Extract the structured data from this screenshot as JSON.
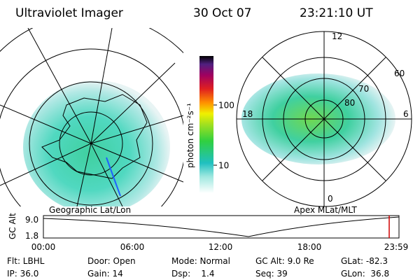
{
  "header": {
    "instrument": "Ultraviolet Imager",
    "date": "30 Oct 07",
    "time": "23:21:10 UT"
  },
  "left_map": {
    "label": "Geographic Lat/Lon"
  },
  "right_map": {
    "label": "Apex MLat/MLT",
    "mlt_labels": [
      "12",
      "6",
      "18",
      "0"
    ],
    "mlat_labels": [
      "60",
      "70",
      "80"
    ]
  },
  "colorbar": {
    "unit": "photon cm⁻²s⁻¹",
    "ticks": [
      "100",
      "10"
    ]
  },
  "timeline": {
    "y_label": "GC Alt",
    "y_ticks": [
      "9.0",
      "1.8"
    ],
    "x_ticks": [
      "00:00",
      "06:00",
      "12:00",
      "18:00",
      "23:59"
    ]
  },
  "status": {
    "rows": [
      [
        "Flt: LBHL",
        "Door: Open",
        "Mode: Normal",
        "GC Alt: 9.0 Re",
        "GLat: -82.3"
      ],
      [
        "IP: 36.0",
        "Gain: 14",
        "Dsp:    1.4",
        "Seq: 39",
        "GLon:  36.8"
      ]
    ]
  }
}
